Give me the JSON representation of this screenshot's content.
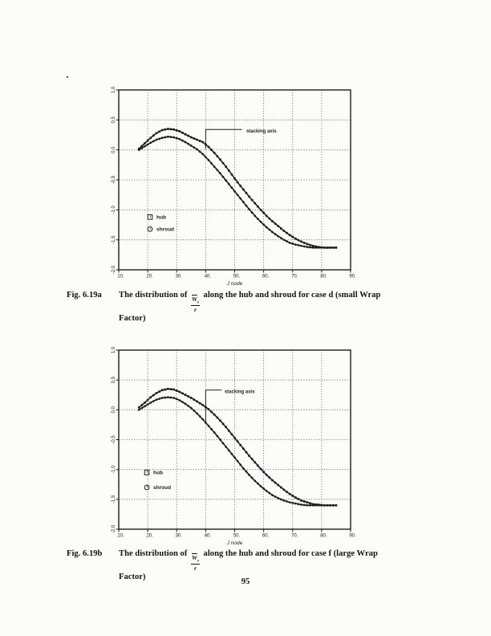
{
  "page": {
    "number": "95"
  },
  "colors": {
    "ink": "#1c1c1c",
    "grid": "#555555",
    "paper": "#fcfcfa"
  },
  "figures": [
    {
      "caption": {
        "label": "Fig. 6.19a",
        "pre": "The distribution of",
        "frac": {
          "num": "W",
          "num_sub": "s",
          "den": "r"
        },
        "post": "along the hub and shroud for case d (small Wrap",
        "line2": "Factor)"
      }
    },
    {
      "caption": {
        "label": "Fig. 6.19b",
        "pre": "The distribution of",
        "frac": {
          "num": "W",
          "num_sub": "s",
          "den": "r"
        },
        "post": "along the hub and shroud for case f (large Wrap",
        "line2": "Factor)"
      }
    }
  ],
  "chart_data": [
    {
      "type": "line",
      "title": "",
      "xlabel": "J node",
      "ylabel": "",
      "xlim": [
        10,
        90
      ],
      "ylim": [
        -2.0,
        1.0
      ],
      "xtick_values": [
        10,
        20,
        30,
        40,
        50,
        60,
        70,
        80,
        90
      ],
      "xtick_labels": [
        "10.",
        "20.",
        "30.",
        "40.",
        "50.",
        "60.",
        "70.",
        "80.",
        "90."
      ],
      "ytick_values": [
        1.0,
        0.5,
        0.0,
        -0.5,
        -1.0,
        -1.5,
        -2.0
      ],
      "ytick_labels": [
        "1.0",
        "0.5",
        "0.0",
        "-0.5",
        "-1.0",
        "-1.5",
        "-2.0"
      ],
      "grid": "dotted",
      "x": [
        17,
        19,
        21,
        23,
        25,
        27,
        29,
        31,
        33,
        35,
        37,
        39,
        41,
        43,
        45,
        47,
        49,
        51,
        53,
        55,
        57,
        59,
        61,
        63,
        65,
        67,
        69,
        71,
        73,
        75,
        77,
        79,
        81,
        83,
        85
      ],
      "series": [
        {
          "name": "hub",
          "marker": "square",
          "values": [
            0.02,
            0.11,
            0.2,
            0.28,
            0.33,
            0.35,
            0.34,
            0.31,
            0.26,
            0.21,
            0.17,
            0.13,
            0.05,
            -0.05,
            -0.16,
            -0.28,
            -0.41,
            -0.54,
            -0.66,
            -0.78,
            -0.89,
            -1.0,
            -1.1,
            -1.19,
            -1.27,
            -1.35,
            -1.42,
            -1.48,
            -1.53,
            -1.57,
            -1.6,
            -1.62,
            -1.63,
            -1.63,
            -1.63
          ]
        },
        {
          "name": "shroud",
          "marker": "circle",
          "values": [
            0.0,
            0.06,
            0.12,
            0.17,
            0.2,
            0.22,
            0.21,
            0.18,
            0.13,
            0.07,
            0.01,
            -0.07,
            -0.17,
            -0.28,
            -0.39,
            -0.51,
            -0.63,
            -0.75,
            -0.87,
            -0.99,
            -1.1,
            -1.2,
            -1.29,
            -1.37,
            -1.44,
            -1.5,
            -1.55,
            -1.58,
            -1.6,
            -1.62,
            -1.63,
            -1.63,
            -1.63,
            -1.63,
            -1.63
          ]
        }
      ],
      "legend": {
        "position": "inside-lower-left",
        "entries": [
          {
            "label": "hub",
            "marker": "square",
            "pos": [
              20.8,
              -1.12
            ]
          },
          {
            "label": "shroud",
            "marker": "circle",
            "pos": [
              20.8,
              -1.32
            ]
          }
        ]
      },
      "annotation": {
        "text": "stacking axis",
        "x": 40,
        "line_top_y": 0.34,
        "line_bottom_y": 0.02,
        "connector_end_x": 52.5,
        "label_x": 54,
        "label_y": 0.32
      }
    },
    {
      "type": "line",
      "title": "",
      "xlabel": "J node",
      "ylabel": "",
      "xlim": [
        10,
        90
      ],
      "ylim": [
        -2.0,
        1.0
      ],
      "xtick_values": [
        10,
        20,
        30,
        40,
        50,
        60,
        70,
        80,
        90
      ],
      "xtick_labels": [
        "10.",
        "20.",
        "30.",
        "40.",
        "50.",
        "60.",
        "70.",
        "80.",
        "90."
      ],
      "ytick_values": [
        1.0,
        0.5,
        0.0,
        -0.5,
        -1.0,
        -1.5,
        -2.0
      ],
      "ytick_labels": [
        "1.0",
        "0.5",
        "0.0",
        "-0.5",
        "-1.0",
        "-1.5",
        "-2.0"
      ],
      "grid": "dotted",
      "x": [
        17,
        19,
        21,
        23,
        25,
        27,
        29,
        31,
        33,
        35,
        37,
        39,
        41,
        43,
        45,
        47,
        49,
        51,
        53,
        55,
        57,
        59,
        61,
        63,
        65,
        67,
        69,
        71,
        73,
        75,
        77,
        79,
        81,
        83,
        85
      ],
      "series": [
        {
          "name": "hub",
          "marker": "square",
          "values": [
            0.04,
            0.12,
            0.21,
            0.28,
            0.33,
            0.35,
            0.34,
            0.3,
            0.25,
            0.2,
            0.14,
            0.08,
            0.01,
            -0.08,
            -0.18,
            -0.29,
            -0.41,
            -0.53,
            -0.65,
            -0.77,
            -0.88,
            -0.99,
            -1.09,
            -1.18,
            -1.26,
            -1.34,
            -1.41,
            -1.47,
            -1.52,
            -1.55,
            -1.58,
            -1.59,
            -1.6,
            -1.6,
            -1.6
          ]
        },
        {
          "name": "shroud",
          "marker": "circle",
          "values": [
            0.0,
            0.06,
            0.12,
            0.17,
            0.2,
            0.21,
            0.2,
            0.16,
            0.1,
            0.03,
            -0.06,
            -0.16,
            -0.27,
            -0.38,
            -0.5,
            -0.62,
            -0.74,
            -0.86,
            -0.98,
            -1.09,
            -1.19,
            -1.28,
            -1.36,
            -1.43,
            -1.48,
            -1.52,
            -1.55,
            -1.57,
            -1.59,
            -1.6,
            -1.6,
            -1.6,
            -1.6,
            -1.6,
            -1.6
          ]
        }
      ],
      "legend": {
        "position": "inside-lower-left",
        "entries": [
          {
            "label": "hub",
            "marker": "square",
            "pos": [
              19.7,
              -1.05
            ]
          },
          {
            "label": "shroud",
            "marker": "circle",
            "pos": [
              19.7,
              -1.3
            ]
          }
        ]
      },
      "annotation": {
        "text": "stacking axis",
        "x": 40,
        "line_top_y": 0.33,
        "line_bottom_y": -0.2,
        "connector_end_x": 45.5,
        "label_x": 46.5,
        "label_y": 0.31
      }
    }
  ]
}
